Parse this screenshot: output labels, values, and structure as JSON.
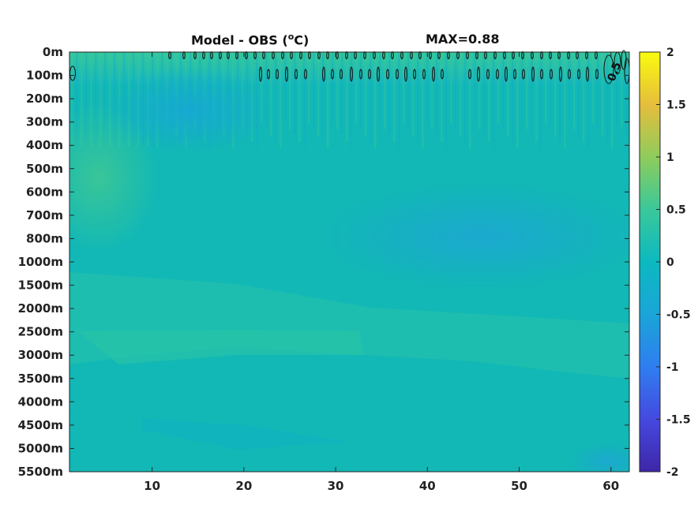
{
  "chart_data": {
    "type": "heatmap",
    "title": "Model - OBS (°C)",
    "title_text": "Model - OBS (",
    "title_unit_sup": "o",
    "title_unit_rest": "C)",
    "subtitle": "MAX=0.88",
    "x": {
      "lim": [
        1,
        62
      ],
      "ticks": [
        10,
        20,
        30,
        40,
        50,
        60
      ],
      "tick_labels": [
        "10",
        "20",
        "30",
        "40",
        "50",
        "60"
      ]
    },
    "y": {
      "categories": [
        "0m",
        "100m",
        "200m",
        "300m",
        "400m",
        "500m",
        "600m",
        "700m",
        "800m",
        "1000m",
        "1500m",
        "2000m",
        "2500m",
        "3000m",
        "3500m",
        "4000m",
        "4500m",
        "5000m",
        "5500m"
      ]
    },
    "colorbar": {
      "lim": [
        -2,
        2
      ],
      "ticks": [
        2,
        1.5,
        1,
        0.5,
        0,
        -0.5,
        -1,
        -1.5,
        -2
      ],
      "tick_labels": [
        "2",
        "1.5",
        "1",
        "0.5",
        "0",
        "-0.5",
        "-1",
        "-1.5",
        "-2"
      ],
      "colormap": "parula"
    },
    "approx_values": {
      "background": -0.05,
      "surface_band_0_100m": 0.25,
      "upper_left_warm_region_500m": 0.2,
      "mid_depth_cool_region_x35_60": -0.2,
      "deep_warm_band_2500_3000m": 0.1,
      "bottom_right_cool": -0.3
    },
    "contours": [
      {
        "level": 0.5,
        "label": "0.5"
      }
    ]
  }
}
